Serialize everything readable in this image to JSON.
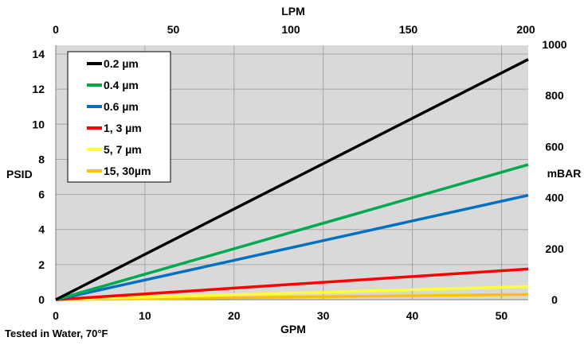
{
  "chart_data": {
    "type": "line",
    "xlabel": "GPM",
    "x2label": "LPM",
    "ylabel": "PSID",
    "y2label": "mBAR",
    "footnote": "Tested in Water, 70°F",
    "xlim": [
      0,
      53
    ],
    "ylim": [
      0,
      14.5
    ],
    "x2lim": [
      0,
      200
    ],
    "y2lim": [
      0,
      1000
    ],
    "x_ticks": [
      0,
      10,
      20,
      30,
      40,
      50
    ],
    "y_ticks": [
      0,
      2,
      4,
      6,
      8,
      10,
      12,
      14
    ],
    "x2_ticks": [
      0,
      50,
      100,
      150,
      200
    ],
    "y2_ticks": [
      0,
      200,
      400,
      600,
      800,
      1000
    ],
    "grid": true,
    "legend_position": "top-left",
    "series": [
      {
        "name": "0.2 µm",
        "color": "#000000",
        "x": [
          0,
          53
        ],
        "y": [
          0,
          13.7
        ]
      },
      {
        "name": "0.4 µm",
        "color": "#00a84f",
        "x": [
          0,
          53
        ],
        "y": [
          0,
          7.7
        ]
      },
      {
        "name": "0.6 µm",
        "color": "#0070c0",
        "x": [
          0,
          53
        ],
        "y": [
          0,
          5.95
        ]
      },
      {
        "name": "1, 3 µm",
        "color": "#ff0000",
        "x": [
          0,
          53
        ],
        "y": [
          0,
          1.75
        ]
      },
      {
        "name": "5, 7 µm",
        "color": "#ffff33",
        "x": [
          0,
          53
        ],
        "y": [
          0,
          0.75
        ]
      },
      {
        "name": "15, 30µm",
        "color": "#ffc000",
        "x": [
          0,
          53
        ],
        "y": [
          0,
          0.3
        ]
      }
    ]
  }
}
